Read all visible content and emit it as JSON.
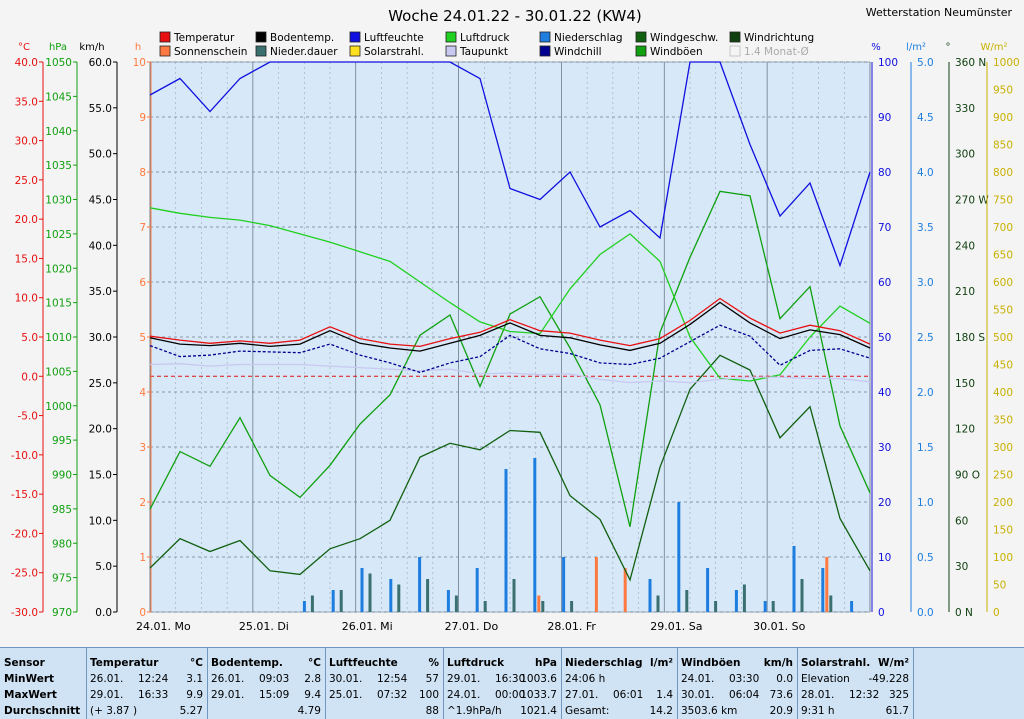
{
  "chart_data": {
    "type": "line",
    "title": "Woche 24.01.22 - 30.01.22 (KW4)",
    "station": "Wetterstation Neumünster",
    "x_labels": [
      "24.01. Mo",
      "25.01. Di",
      "26.01. Mi",
      "27.01. Do",
      "28.01. Fr",
      "29.01. Sa",
      "30.01. So"
    ],
    "legend": [
      {
        "label": "Temperatur",
        "color": "#e81010"
      },
      {
        "label": "Sonnenschein",
        "color": "#ff7a40"
      },
      {
        "label": "Bodentemp.",
        "color": "#000000"
      },
      {
        "label": "Nieder.dauer",
        "color": "#3a7070"
      },
      {
        "label": "Luftfeuchte",
        "color": "#1010e0"
      },
      {
        "label": "Solarstrahl.",
        "color": "#ffe020"
      },
      {
        "label": "Luftdruck",
        "color": "#20d020"
      },
      {
        "label": "Taupunkt",
        "color": "#c8c8f0"
      },
      {
        "label": "Niederschlag",
        "color": "#1e7ee0"
      },
      {
        "label": "Windchill",
        "color": "#000090"
      },
      {
        "label": "Windgeschw.",
        "color": "#106010"
      },
      {
        "label": "Windböen",
        "color": "#10a010"
      },
      {
        "label": "Windrichtung",
        "color": "#104010"
      },
      {
        "label": "1.4 Monat-Ø",
        "color": "#c0c0c0"
      }
    ],
    "axes": {
      "temp_unit": "°C",
      "temp_ticks": [
        "40.0",
        "35.0",
        "30.0",
        "25.0",
        "20.0",
        "15.0",
        "10.0",
        "5.0",
        "0.0",
        "-5.0",
        "-10.0",
        "-15.0",
        "-20.0",
        "-25.0",
        "-30.0"
      ],
      "press_unit": "hPa",
      "press_ticks": [
        "1050",
        "1045",
        "1040",
        "1035",
        "1030",
        "1025",
        "1020",
        "1015",
        "1010",
        "1005",
        "1000",
        "995",
        "990",
        "985",
        "980",
        "975",
        "970"
      ],
      "wind_unit": "km/h",
      "wind_ticks": [
        "60.0",
        "55.0",
        "50.0",
        "45.0",
        "40.0",
        "35.0",
        "30.0",
        "25.0",
        "20.0",
        "15.0",
        "10.0",
        "5.0",
        "0.0"
      ],
      "hours_unit": "h",
      "hours_ticks": [
        "10",
        "9",
        "8",
        "7",
        "6",
        "5",
        "4",
        "3",
        "2",
        "1",
        "0"
      ],
      "hum_unit": "%",
      "hum_ticks": [
        "100",
        "90",
        "80",
        "70",
        "60",
        "50",
        "40",
        "30",
        "20",
        "10",
        "0"
      ],
      "rain_unit": "l/m²",
      "rain_ticks": [
        "5.0",
        "4.5",
        "4.0",
        "3.5",
        "3.0",
        "2.5",
        "2.0",
        "1.5",
        "1.0",
        "0.5",
        "0.0"
      ],
      "dir_unit": "°",
      "dir_ticks": [
        "360 N",
        "330",
        "300",
        "270 W",
        "240",
        "210",
        "180 S",
        "150",
        "120",
        "90 O",
        "60",
        "30",
        "0 N"
      ],
      "solar_unit": "W/m²",
      "solar_ticks": [
        "1000",
        "950",
        "900",
        "850",
        "800",
        "750",
        "700",
        "650",
        "600",
        "550",
        "500",
        "450",
        "400",
        "350",
        "300",
        "250",
        "200",
        "150",
        "100",
        "50",
        "0"
      ]
    },
    "series": [
      {
        "name": "Temperatur",
        "color": "#e81010",
        "y_axis": "°C",
        "values": [
          5.1,
          4.6,
          4.2,
          4.5,
          4.2,
          4.6,
          6.3,
          4.8,
          4.1,
          3.8,
          4.8,
          5.6,
          7.2,
          5.8,
          5.5,
          4.6,
          3.9,
          4.8,
          7.1,
          9.9,
          7.4,
          5.5,
          6.5,
          5.8,
          4.1
        ]
      },
      {
        "name": "Bodentemp.",
        "color": "#000000",
        "y_axis": "°C",
        "values": [
          4.9,
          4.1,
          3.9,
          4.2,
          3.8,
          4.1,
          5.8,
          4.2,
          3.6,
          3.2,
          4.2,
          5.2,
          6.8,
          5.2,
          4.9,
          4.0,
          3.3,
          4.2,
          6.6,
          9.4,
          6.8,
          4.8,
          5.9,
          5.3,
          3.6
        ]
      },
      {
        "name": "Windchill",
        "color": "#000090",
        "y_axis": "°C",
        "values": [
          3.9,
          2.5,
          2.7,
          3.2,
          3.1,
          3.0,
          4.1,
          2.7,
          1.7,
          0.5,
          1.7,
          2.5,
          5.2,
          3.5,
          2.9,
          1.7,
          1.5,
          2.3,
          4.4,
          6.5,
          5.1,
          1.4,
          3.3,
          3.5,
          2.3
        ]
      },
      {
        "name": "Taupunkt",
        "color": "#c8c8f0",
        "y_axis": "°C",
        "values": [
          1.5,
          1.6,
          1.3,
          1.5,
          1.5,
          1.5,
          1.3,
          1.1,
          0.9,
          0.7,
          0.9,
          0.3,
          0.4,
          0.2,
          0.3,
          -0.4,
          -0.8,
          -0.6,
          -0.8,
          -0.4,
          -0.1,
          -0.1,
          -0.3,
          -0.3,
          -0.7
        ]
      },
      {
        "name": "Luftfeuchte",
        "color": "#1010e0",
        "y_axis": "%",
        "values": [
          94,
          97,
          91,
          97,
          100,
          100,
          100,
          100,
          100,
          100,
          100,
          97,
          77,
          75,
          80,
          70,
          73,
          68,
          100,
          100,
          85,
          72,
          78,
          63,
          80
        ]
      },
      {
        "name": "Luftdruck",
        "color": "#20d020",
        "y_axis": "hPa",
        "values": [
          1028.8,
          1028.0,
          1027.4,
          1027.0,
          1026.2,
          1025.0,
          1023.8,
          1022.4,
          1021.0,
          1018.0,
          1015.0,
          1012.2,
          1010.8,
          1010.5,
          1017.0,
          1022.0,
          1025.0,
          1021.0,
          1010.0,
          1004.0,
          1003.6,
          1004.5,
          1010.0,
          1014.5,
          1012.0
        ]
      },
      {
        "name": "Windböen",
        "color": "#10a010",
        "y_axis": "km/h",
        "values": [
          11.2,
          17.5,
          15.9,
          21.2,
          14.9,
          12.5,
          16.0,
          20.5,
          23.7,
          30.2,
          32.4,
          24.6,
          32.5,
          34.4,
          28.8,
          22.6,
          9.3,
          30.5,
          38.7,
          45.9,
          45.4,
          32.0,
          35.5,
          20.3,
          13.0
        ]
      },
      {
        "name": "Windgeschw.",
        "color": "#106010",
        "y_axis": "km/h",
        "values": [
          4.8,
          8.0,
          6.6,
          7.8,
          4.5,
          4.1,
          6.9,
          8.0,
          10.0,
          16.9,
          18.4,
          17.7,
          19.8,
          19.6,
          12.7,
          10.1,
          3.5,
          15.8,
          24.3,
          28.0,
          26.4,
          19.0,
          22.4,
          10.2,
          4.5
        ]
      }
    ],
    "bars": [
      {
        "name": "Niederschlag",
        "color": "#1e7ee0",
        "unit": "l/m²",
        "values": [
          0,
          0,
          0,
          0,
          0,
          0.1,
          0.2,
          0.4,
          0.3,
          0.5,
          0.2,
          0.4,
          1.3,
          1.4,
          0.5,
          0,
          0,
          0.3,
          1.0,
          0.4,
          0.2,
          0.1,
          0.6,
          0.4,
          0.1
        ]
      },
      {
        "name": "Sonnenschein",
        "color": "#ff7a40",
        "unit": "h",
        "values": [
          0,
          0,
          0,
          0,
          0,
          0,
          0,
          0,
          0,
          0,
          0,
          0,
          0,
          0.3,
          0,
          1.0,
          0.8,
          0,
          0,
          0,
          0,
          0,
          0,
          1.0,
          0
        ]
      },
      {
        "name": "Nieder.dauer",
        "color": "#3a7070",
        "unit": "h",
        "values": [
          0,
          0,
          0,
          0,
          0,
          0.3,
          0.4,
          0.7,
          0.5,
          0.6,
          0.3,
          0.2,
          0.6,
          0.2,
          0.2,
          0,
          0,
          0.3,
          0.4,
          0.2,
          0.5,
          0.2,
          0.6,
          0.3,
          0
        ]
      }
    ],
    "solar": {
      "name": "Solarstrahl.",
      "color": "#ffe020",
      "unit": "W/m²",
      "values": [
        0,
        0,
        0,
        0,
        0,
        0,
        0,
        0,
        0,
        0,
        0,
        0,
        0,
        0,
        0,
        0,
        0,
        0,
        0,
        0,
        0,
        0,
        0,
        0,
        0
      ]
    }
  },
  "stats": {
    "sensor": {
      "title": "Sensor",
      "labels": [
        "MinWert",
        "MaxWert",
        "Durchschnitt"
      ]
    },
    "blocks": [
      {
        "title": "Temperatur",
        "unit": "°C",
        "rows": [
          [
            "26.01.",
            "12:24",
            "3.1"
          ],
          [
            "29.01.",
            "16:33",
            "9.9"
          ],
          [
            "(+ 3.87 )",
            "",
            "5.27"
          ]
        ]
      },
      {
        "title": "Bodentemp.",
        "unit": "°C",
        "rows": [
          [
            "26.01.",
            "09:03",
            "2.8"
          ],
          [
            "29.01.",
            "15:09",
            "9.4"
          ],
          [
            "",
            "",
            "4.79"
          ]
        ]
      },
      {
        "title": "Luftfeuchte",
        "unit": "%",
        "rows": [
          [
            "30.01.",
            "12:54",
            "57"
          ],
          [
            "25.01.",
            "07:32",
            "100"
          ],
          [
            "",
            "",
            "88"
          ]
        ]
      },
      {
        "title": "Luftdruck",
        "unit": "hPa",
        "rows": [
          [
            "29.01.",
            "16:30",
            "1003.6"
          ],
          [
            "24.01.",
            "00:00",
            "1033.7"
          ],
          [
            "^1.9hPa/h",
            "",
            "1021.4"
          ]
        ]
      },
      {
        "title": "Niederschlag",
        "unit": "l/m²",
        "rows": [
          [
            "24:06 h",
            "",
            ""
          ],
          [
            "27.01.",
            "06:01",
            "1.4"
          ],
          [
            "Gesamt:",
            "",
            "14.2"
          ]
        ]
      },
      {
        "title": "Windböen",
        "unit": "km/h",
        "rows": [
          [
            "24.01.",
            "03:30",
            "0.0"
          ],
          [
            "30.01.",
            "06:04",
            "73.6"
          ],
          [
            "3503.6 km",
            "",
            "20.9"
          ]
        ]
      },
      {
        "title": "Solarstrahl.",
        "unit": "W/m²",
        "rows": [
          [
            "Elevation",
            "",
            "-49.228"
          ],
          [
            "28.01.",
            "12:32",
            "325"
          ],
          [
            "9:31 h",
            "",
            "61.7"
          ]
        ]
      }
    ]
  }
}
